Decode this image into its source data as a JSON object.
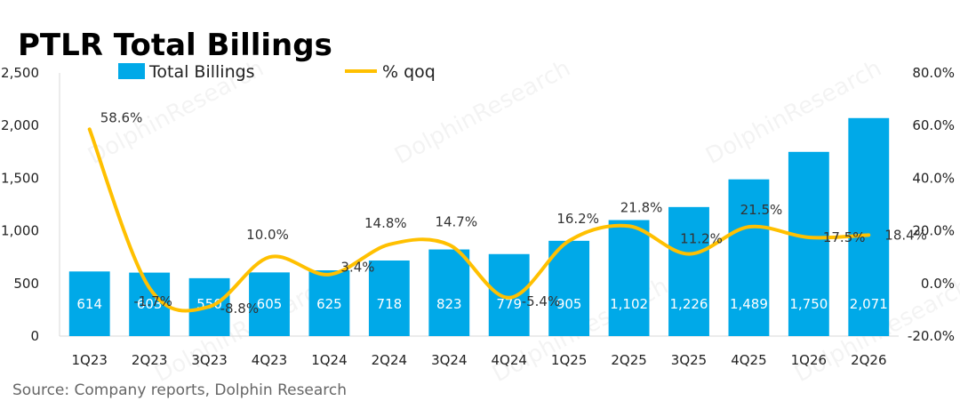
{
  "chart_data": {
    "type": "bar",
    "title": "PTLR Total Billings",
    "categories": [
      "1Q23",
      "2Q23",
      "3Q23",
      "4Q23",
      "1Q24",
      "2Q24",
      "3Q24",
      "4Q24",
      "1Q25",
      "2Q25",
      "3Q25",
      "4Q25",
      "1Q26",
      "2Q26"
    ],
    "series": [
      {
        "name": "Total Billings",
        "type": "bar",
        "axis": "left",
        "values": [
          614,
          603,
          550,
          605,
          625,
          718,
          823,
          779,
          905,
          1102,
          1226,
          1489,
          1750,
          2071
        ],
        "labels": [
          "614",
          "603",
          "550",
          "605",
          "625",
          "718",
          "823",
          "779",
          "905",
          "1,102",
          "1,226",
          "1,489",
          "1,750",
          "2,071"
        ]
      },
      {
        "name": "% qoq",
        "type": "line",
        "axis": "right",
        "values": [
          58.6,
          -1.7,
          -8.8,
          10.0,
          3.4,
          14.8,
          14.7,
          -5.4,
          16.2,
          21.8,
          11.2,
          21.5,
          17.5,
          18.4
        ],
        "labels": [
          "58.6%",
          "-1.7%",
          "-8.8%",
          "10.0%",
          "3.4%",
          "14.8%",
          "14.7%",
          "-5.4%",
          "16.2%",
          "21.8%",
          "11.2%",
          "21.5%",
          "17.5%",
          "18.4%"
        ]
      }
    ],
    "y_left": {
      "min": 0,
      "max": 2500,
      "ticks": [
        "0",
        "500",
        "1,000",
        "1,500",
        "2,000",
        "2,500"
      ]
    },
    "y_right": {
      "min": -20,
      "max": 80,
      "ticks": [
        "-20.0%",
        "0.0%",
        "20.0%",
        "40.0%",
        "60.0%",
        "80.0%"
      ]
    },
    "grid": false,
    "legend_position": "top",
    "colors": {
      "bar": "#00A9E8",
      "line": "#FFC000",
      "axis": "#D9D9D9"
    },
    "source": "Source:  Company reports, Dolphin Research",
    "watermark": "DolphinResearch"
  }
}
